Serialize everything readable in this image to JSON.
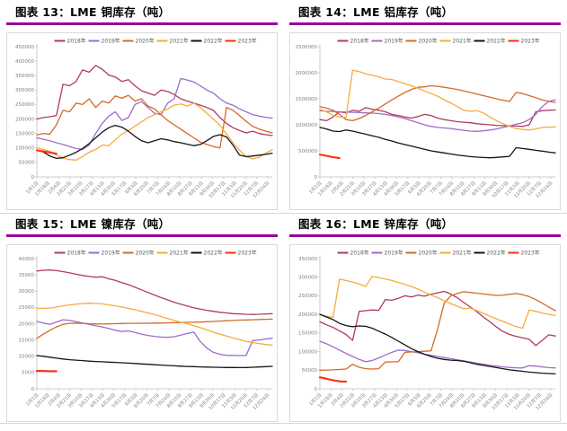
{
  "styles": {
    "accent_rule_color": "#990099",
    "frame_border_color": "#d9d9d9",
    "axis_line_color": "#bfbfbf",
    "tick_label_color": "#808080",
    "legend_text_color": "#595959",
    "background": "#ffffff"
  },
  "x_axis": {
    "interval_days": 17,
    "labels": [
      "1月1日",
      "1月18日",
      "2月4日",
      "2月21日",
      "3月10日",
      "3月27日",
      "4月13日",
      "4月30日",
      "5月17日",
      "6月3日",
      "6月20日",
      "7月7日",
      "7月24日",
      "8月10日",
      "8月27日",
      "9月13日",
      "9月30日",
      "10月17日",
      "11月3日",
      "11月20日",
      "12月7日",
      "12月24日"
    ]
  },
  "chart_data": [
    {
      "type": "line",
      "title": "图表 13：LME 铜库存（吨）",
      "xlabel": "",
      "ylabel": "",
      "ylim": [
        0,
        450000
      ],
      "ytick_step": 50000,
      "grid": false,
      "legend_position": "top",
      "points_per_year": 37,
      "series": [
        {
          "name": "2018年",
          "color": "#b13a5e",
          "values": [
            200000,
            205000,
            208000,
            212000,
            320000,
            315000,
            330000,
            370000,
            362000,
            385000,
            372000,
            352000,
            345000,
            330000,
            336000,
            315000,
            298000,
            290000,
            282000,
            300000,
            295000,
            285000,
            270000,
            262000,
            255000,
            248000,
            240000,
            230000,
            205000,
            185000,
            170000,
            160000,
            152000,
            158000,
            150000,
            146000,
            143000
          ]
        },
        {
          "name": "2019年",
          "color": "#9e6bc9",
          "values": [
            135000,
            130000,
            125000,
            118000,
            112000,
            105000,
            98000,
            95000,
            110000,
            150000,
            185000,
            210000,
            225000,
            195000,
            205000,
            250000,
            260000,
            240000,
            220000,
            215000,
            255000,
            270000,
            340000,
            335000,
            328000,
            315000,
            300000,
            290000,
            270000,
            255000,
            248000,
            235000,
            225000,
            215000,
            210000,
            206000,
            203000
          ]
        },
        {
          "name": "2020年",
          "color": "#d26b28",
          "values": [
            145000,
            150000,
            148000,
            180000,
            230000,
            225000,
            255000,
            250000,
            270000,
            240000,
            262000,
            255000,
            280000,
            272000,
            282000,
            262000,
            270000,
            245000,
            235000,
            215000,
            195000,
            180000,
            165000,
            150000,
            135000,
            120000,
            112000,
            105000,
            100000,
            240000,
            230000,
            212000,
            192000,
            175000,
            165000,
            158000,
            152000
          ]
        },
        {
          "name": "2021年",
          "color": "#f5ab3d",
          "values": [
            100000,
            95000,
            88000,
            75000,
            65000,
            60000,
            58000,
            70000,
            85000,
            95000,
            110000,
            108000,
            128000,
            148000,
            160000,
            175000,
            190000,
            205000,
            215000,
            225000,
            235000,
            248000,
            252000,
            245000,
            255000,
            240000,
            220000,
            200000,
            178000,
            148000,
            118000,
            92000,
            70000,
            62000,
            68000,
            82000,
            94000
          ]
        },
        {
          "name": "2022年",
          "color": "#151515",
          "values": [
            92000,
            86000,
            72000,
            64000,
            66000,
            75000,
            85000,
            98000,
            115000,
            135000,
            155000,
            170000,
            178000,
            172000,
            158000,
            140000,
            125000,
            118000,
            125000,
            132000,
            128000,
            122000,
            118000,
            113000,
            108000,
            112000,
            125000,
            140000,
            146000,
            138000,
            110000,
            75000,
            70000,
            72000,
            75000,
            78000,
            82000
          ]
        },
        {
          "name": "2023年",
          "color": "#fb2e0f",
          "values": [
            92000,
            88000,
            84000,
            80000
          ]
        }
      ]
    },
    {
      "type": "line",
      "title": "图表 14：LME 铝库存（吨）",
      "xlabel": "",
      "ylabel": "",
      "ylim": [
        0,
        2500000
      ],
      "ytick_step": 500000,
      "grid": false,
      "legend_position": "top",
      "points_per_year": 37,
      "series": [
        {
          "name": "2018年",
          "color": "#b13a5e",
          "values": [
            1100000,
            1080000,
            1150000,
            1250000,
            1230000,
            1280000,
            1260000,
            1330000,
            1300000,
            1280000,
            1250000,
            1200000,
            1180000,
            1150000,
            1130000,
            1160000,
            1200000,
            1180000,
            1130000,
            1100000,
            1080000,
            1060000,
            1050000,
            1040000,
            1020000,
            1010000,
            1000000,
            990000,
            985000,
            980000,
            975000,
            970000,
            1000000,
            1250000,
            1270000,
            1280000,
            1285000
          ]
        },
        {
          "name": "2019年",
          "color": "#9e6bc9",
          "values": [
            1270000,
            1260000,
            1255000,
            1250000,
            1245000,
            1240000,
            1235000,
            1230000,
            1225000,
            1215000,
            1200000,
            1180000,
            1150000,
            1120000,
            1080000,
            1040000,
            1000000,
            970000,
            950000,
            940000,
            930000,
            910000,
            895000,
            880000,
            875000,
            885000,
            900000,
            920000,
            950000,
            980000,
            1010000,
            1040000,
            1100000,
            1200000,
            1350000,
            1450000,
            1480000
          ]
        },
        {
          "name": "2020年",
          "color": "#d26b28",
          "values": [
            1350000,
            1320000,
            1280000,
            1200000,
            1100000,
            1080000,
            1120000,
            1180000,
            1250000,
            1320000,
            1400000,
            1480000,
            1550000,
            1620000,
            1680000,
            1720000,
            1730000,
            1750000,
            1740000,
            1720000,
            1700000,
            1680000,
            1650000,
            1620000,
            1590000,
            1560000,
            1530000,
            1500000,
            1470000,
            1450000,
            1620000,
            1600000,
            1560000,
            1520000,
            1480000,
            1450000,
            1430000
          ]
        },
        {
          "name": "2021年",
          "color": "#f5ab3d",
          "values": [
            1300000,
            1250000,
            1180000,
            1150000,
            1140000,
            2050000,
            2020000,
            1980000,
            1950000,
            1920000,
            1880000,
            1870000,
            1830000,
            1790000,
            1750000,
            1700000,
            1650000,
            1600000,
            1550000,
            1480000,
            1420000,
            1350000,
            1280000,
            1260000,
            1270000,
            1230000,
            1150000,
            1080000,
            1020000,
            970000,
            930000,
            910000,
            900000,
            920000,
            950000,
            955000,
            960000
          ]
        },
        {
          "name": "2022年",
          "color": "#151515",
          "values": [
            950000,
            920000,
            880000,
            870000,
            900000,
            880000,
            850000,
            820000,
            790000,
            760000,
            720000,
            690000,
            650000,
            620000,
            590000,
            560000,
            530000,
            500000,
            480000,
            460000,
            440000,
            420000,
            405000,
            390000,
            380000,
            372000,
            368000,
            375000,
            385000,
            395000,
            560000,
            545000,
            530000,
            510000,
            495000,
            475000,
            460000
          ]
        },
        {
          "name": "2023年",
          "color": "#fb2e0f",
          "values": [
            430000,
            405000,
            380000,
            360000
          ]
        }
      ]
    },
    {
      "type": "line",
      "title": "图表 15：LME 镍库存（吨）",
      "xlabel": "",
      "ylabel": "",
      "ylim": [
        0,
        40000
      ],
      "ytick_step": 5000,
      "grid": false,
      "legend_position": "top",
      "points_per_year": 37,
      "series": [
        {
          "name": "2018年",
          "color": "#b13a5e",
          "values": [
            36200,
            36400,
            36500,
            36300,
            36000,
            35600,
            35200,
            34800,
            34500,
            34300,
            34400,
            33800,
            33300,
            32600,
            32000,
            31200,
            30400,
            29600,
            28800,
            28000,
            27300,
            26600,
            26000,
            25400,
            24900,
            24500,
            24100,
            23800,
            23500,
            23300,
            23100,
            23000,
            22900,
            22850,
            22900,
            23000,
            23100
          ]
        },
        {
          "name": "2019年",
          "color": "#9e6bc9",
          "values": [
            20700,
            20200,
            19800,
            20500,
            21200,
            21000,
            20600,
            20200,
            19800,
            19400,
            19000,
            18500,
            18000,
            17600,
            17800,
            17300,
            16800,
            16400,
            16100,
            15900,
            15800,
            16000,
            16500,
            17000,
            17400,
            14500,
            12500,
            11200,
            10600,
            10300,
            10250,
            10200,
            10250,
            14800,
            15000,
            15300,
            15500
          ]
        },
        {
          "name": "2020年",
          "color": "#d26b28",
          "values": [
            15500,
            16800,
            18000,
            19000,
            19800,
            20100,
            20150,
            20100,
            20000,
            19950,
            19900,
            19950,
            20000,
            20050,
            20100,
            20100,
            20150,
            20150,
            20200,
            20200,
            20250,
            20300,
            20350,
            20400,
            20450,
            20500,
            20600,
            20700,
            20800,
            20900,
            21000,
            21100,
            21150,
            21200,
            21300,
            21350,
            21400
          ]
        },
        {
          "name": "2021年",
          "color": "#f5ab3d",
          "values": [
            24700,
            24750,
            24800,
            25100,
            25500,
            25800,
            26000,
            26200,
            26300,
            26200,
            26100,
            25800,
            25500,
            25100,
            24700,
            24300,
            23800,
            23300,
            22800,
            22200,
            21600,
            21000,
            20500,
            20000,
            19400,
            18800,
            18100,
            17400,
            16800,
            16200,
            15600,
            15100,
            14600,
            14200,
            13900,
            13600,
            13400
          ]
        },
        {
          "name": "2022年",
          "color": "#151515",
          "values": [
            10200,
            10000,
            9700,
            9400,
            9150,
            8950,
            8800,
            8650,
            8500,
            8400,
            8300,
            8200,
            8100,
            8000,
            7900,
            7780,
            7650,
            7520,
            7400,
            7280,
            7160,
            7050,
            6950,
            6870,
            6800,
            6730,
            6670,
            6620,
            6580,
            6550,
            6530,
            6520,
            6550,
            6620,
            6700,
            6800,
            6900
          ]
        },
        {
          "name": "2023年",
          "color": "#fb2e0f",
          "values": [
            5500,
            5460,
            5420,
            5400
          ]
        }
      ]
    },
    {
      "type": "line",
      "title": "图表 16：LME 锌库存（吨）",
      "xlabel": "",
      "ylabel": "",
      "ylim": [
        0,
        350000
      ],
      "ytick_step": 50000,
      "grid": false,
      "legend_position": "top",
      "points_per_year": 37,
      "series": [
        {
          "name": "2018年",
          "color": "#b13a5e",
          "values": [
            180000,
            172000,
            165000,
            156000,
            146000,
            130000,
            208000,
            210000,
            212000,
            211000,
            240000,
            238000,
            243000,
            250000,
            247000,
            252000,
            249000,
            254000,
            258000,
            262000,
            255000,
            245000,
            232000,
            220000,
            207000,
            193000,
            180000,
            166000,
            154000,
            146000,
            141000,
            137000,
            133000,
            116000,
            130000,
            145000,
            142000
          ]
        },
        {
          "name": "2019年",
          "color": "#9e6bc9",
          "values": [
            128000,
            121000,
            113000,
            104000,
            95000,
            87000,
            79000,
            73000,
            76000,
            83000,
            91000,
            98000,
            104000,
            103000,
            100000,
            97000,
            93000,
            90000,
            87000,
            84000,
            81000,
            78000,
            75000,
            72000,
            69000,
            66000,
            63000,
            61000,
            59000,
            57500,
            56500,
            56000,
            62000,
            61000,
            59000,
            57000,
            56000
          ]
        },
        {
          "name": "2020年",
          "color": "#d26b28",
          "values": [
            50000,
            50500,
            51000,
            52000,
            53000,
            66000,
            58000,
            54000,
            53000,
            54000,
            72000,
            72500,
            73000,
            98000,
            99000,
            100000,
            101000,
            102000,
            160000,
            230000,
            250000,
            256000,
            261000,
            259000,
            257000,
            255000,
            253000,
            251000,
            252000,
            254000,
            256000,
            253000,
            248000,
            240000,
            230000,
            220000,
            210000
          ]
        },
        {
          "name": "2021年",
          "color": "#f5ab3d",
          "values": [
            200000,
            195000,
            192000,
            295000,
            291000,
            287000,
            282000,
            275000,
            302000,
            299000,
            295000,
            291000,
            286000,
            281000,
            275000,
            268000,
            260000,
            252000,
            245000,
            237000,
            229000,
            222000,
            215000,
            217000,
            210000,
            203000,
            195000,
            188000,
            181000,
            174000,
            167000,
            163000,
            212000,
            208000,
            204000,
            200000,
            197000
          ]
        },
        {
          "name": "2022年",
          "color": "#151515",
          "values": [
            200000,
            193000,
            186000,
            176000,
            170000,
            167000,
            169000,
            168000,
            163000,
            155000,
            147000,
            138000,
            128000,
            118000,
            108000,
            100000,
            93000,
            87000,
            82000,
            79000,
            77000,
            76000,
            74000,
            70000,
            66000,
            63000,
            60000,
            57000,
            54000,
            51000,
            49000,
            47000,
            45000,
            43500,
            42000,
            41000,
            40000
          ]
        },
        {
          "name": "2023年",
          "color": "#fb2e0f",
          "values": [
            31000,
            27000,
            23000,
            20000,
            19000
          ]
        }
      ]
    }
  ]
}
